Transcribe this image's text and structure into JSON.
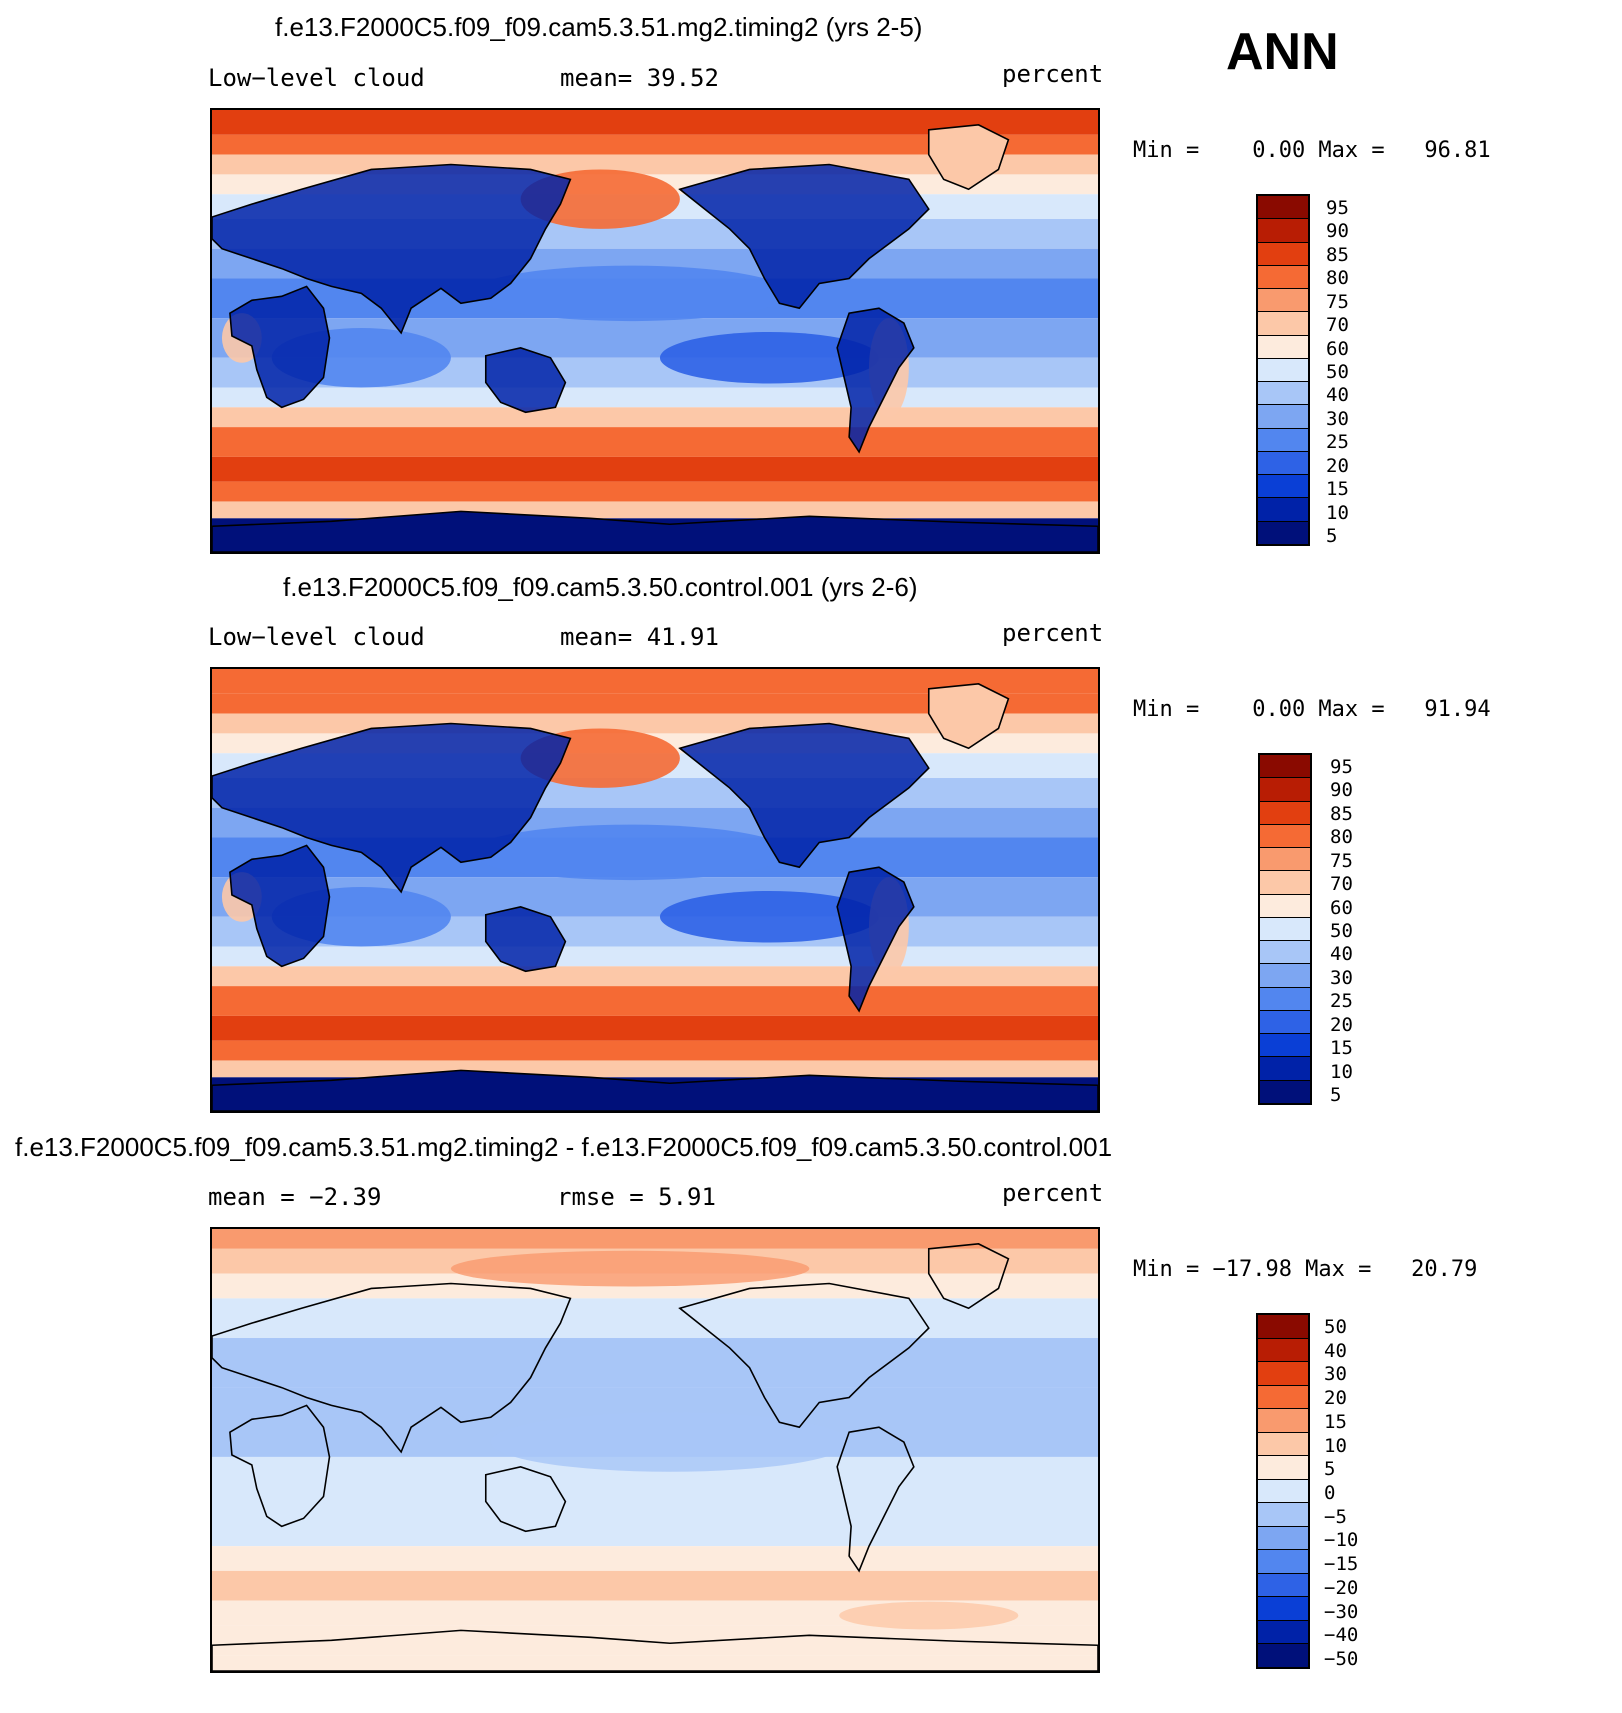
{
  "season": "ANN",
  "colors": {
    "abs_scale": [
      "#00107a",
      "#0022a8",
      "#0a3fd6",
      "#2e62e6",
      "#5286ef",
      "#7da6f2",
      "#a8c6f7",
      "#d8e8fb",
      "#fdebdd",
      "#fcc8a8",
      "#f99a6e",
      "#f56a34",
      "#e23f10",
      "#b81d04",
      "#8a0a00"
    ],
    "diff_scale": [
      "#00107a",
      "#0022a8",
      "#0a3fd6",
      "#2e62e6",
      "#5286ef",
      "#7da6f2",
      "#a8c6f7",
      "#d8e8fb",
      "#fdebdd",
      "#fcc8a8",
      "#f99a6e",
      "#f56a34",
      "#e23f10",
      "#b81d04",
      "#8a0a00"
    ]
  },
  "panels": [
    {
      "title": "f.e13.F2000C5.f09_f09.cam5.3.51.mg2.timing2 (yrs 2-5)",
      "left_label": "Low−level cloud",
      "center_label": "mean=  39.52",
      "units": "percent",
      "minmax": "Min =    0.00 Max =   96.81",
      "cbar_labels": [
        "95",
        "90",
        "85",
        "80",
        "75",
        "70",
        "60",
        "50",
        "40",
        "30",
        "25",
        "20",
        "15",
        "10",
        "5"
      ]
    },
    {
      "title": "f.e13.F2000C5.f09_f09.cam5.3.50.control.001 (yrs 2-6)",
      "left_label": "Low−level cloud",
      "center_label": "mean=  41.91",
      "units": "percent",
      "minmax": "Min =    0.00 Max =   91.94",
      "cbar_labels": [
        "95",
        "90",
        "85",
        "80",
        "75",
        "70",
        "60",
        "50",
        "40",
        "30",
        "25",
        "20",
        "15",
        "10",
        "5"
      ]
    },
    {
      "title": "f.e13.F2000C5.f09_f09.cam5.3.51.mg2.timing2 - f.e13.F2000C5.f09_f09.cam5.3.50.control.001",
      "left_label": "mean =  −2.39",
      "center_label": "rmse =   5.91",
      "units": "percent",
      "minmax": "Min = −17.98 Max =   20.79",
      "cbar_labels": [
        "50",
        "40",
        "30",
        "20",
        "15",
        "10",
        "5",
        "0",
        "−5",
        "−10",
        "−15",
        "−20",
        "−30",
        "−40",
        "−50"
      ]
    }
  ]
}
